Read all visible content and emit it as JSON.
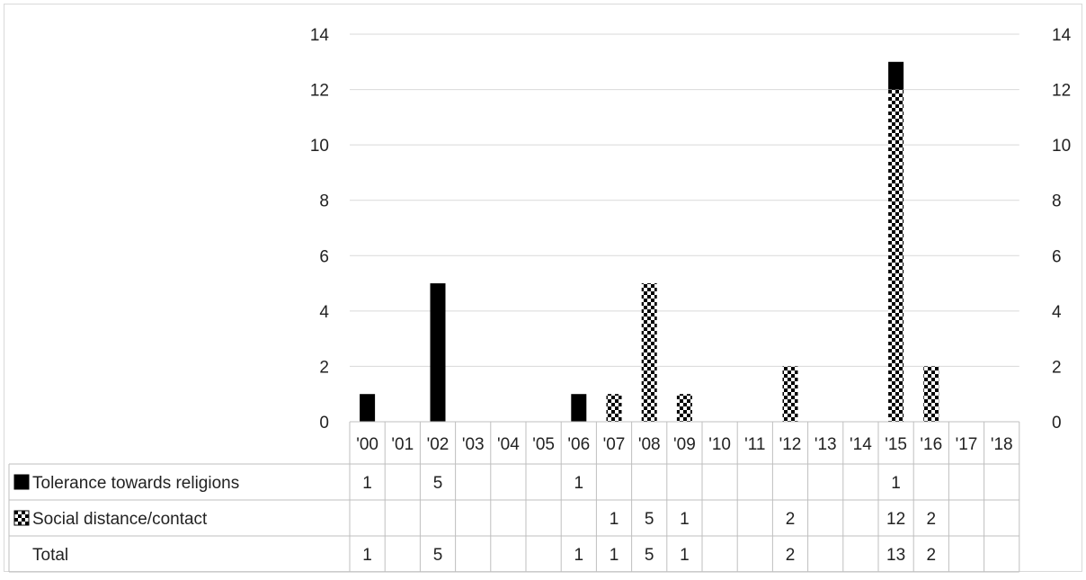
{
  "chart_data": {
    "type": "bar",
    "stacked": true,
    "categories": [
      "'00",
      "'01",
      "'02",
      "'03",
      "'04",
      "'05",
      "'06",
      "'07",
      "'08",
      "'09",
      "'10",
      "'11",
      "'12",
      "'13",
      "'14",
      "'15",
      "'16",
      "'17",
      "'18"
    ],
    "series": [
      {
        "name": "Social distance/contact",
        "pattern": "checker",
        "values": [
          0,
          0,
          0,
          0,
          0,
          0,
          0,
          1,
          5,
          1,
          0,
          0,
          2,
          0,
          0,
          12,
          2,
          0,
          0
        ]
      },
      {
        "name": "Tolerance towards religions",
        "pattern": "solid",
        "values": [
          1,
          0,
          5,
          0,
          0,
          0,
          1,
          0,
          0,
          0,
          0,
          0,
          0,
          0,
          0,
          1,
          0,
          0,
          0
        ]
      }
    ],
    "ylim": [
      0,
      14
    ],
    "yticks": [
      0,
      2,
      4,
      6,
      8,
      10,
      12,
      14
    ],
    "secondary_axis": true,
    "grid": true,
    "data_table": {
      "rows": [
        {
          "label": "Tolerance towards religions",
          "legend_key": "solid",
          "values": [
            "1",
            "",
            "5",
            "",
            "",
            "",
            "1",
            "",
            "",
            "",
            "",
            "",
            "",
            "",
            "",
            "1",
            "",
            "",
            ""
          ]
        },
        {
          "label": "Social distance/contact",
          "legend_key": "checker",
          "values": [
            "",
            "",
            "",
            "",
            "",
            "",
            "",
            "1",
            "5",
            "1",
            "",
            "",
            "2",
            "",
            "",
            "12",
            "2",
            "",
            ""
          ]
        },
        {
          "label": "Total",
          "legend_key": "",
          "values": [
            "1",
            "",
            "5",
            "",
            "",
            "",
            "1",
            "1",
            "5",
            "1",
            "",
            "",
            "2",
            "",
            "",
            "13",
            "2",
            "",
            ""
          ]
        }
      ]
    },
    "colors": {
      "bar": "#000000",
      "checker_light": "#ffffff",
      "grid": "#d9d9d9",
      "table_border": "#bfbfbf"
    }
  }
}
